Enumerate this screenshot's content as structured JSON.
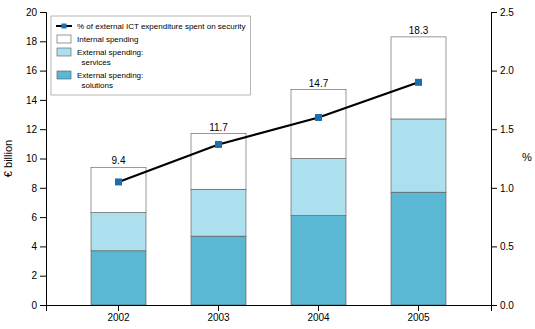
{
  "chart_data": {
    "type": "bar",
    "stacked": true,
    "grid": false,
    "legend": "upper-left",
    "categories": [
      "2002",
      "2003",
      "2004",
      "2005"
    ],
    "ylabel": "€ billion",
    "y2label": "%",
    "ylim": [
      0,
      20
    ],
    "yticks": [
      0,
      2,
      4,
      6,
      8,
      10,
      12,
      14,
      16,
      18,
      20
    ],
    "y2lim": [
      0.0,
      2.5
    ],
    "y2ticks": [
      {
        "value": 0.0,
        "label": "0.0"
      },
      0.5,
      {
        "value": 1.0,
        "label": "1.0"
      },
      1.5,
      {
        "value": 2.0,
        "label": "2.0"
      },
      2.5
    ],
    "totals": [
      9.4,
      11.7,
      14.7,
      18.3
    ],
    "series": [
      {
        "name": "External spending:\n  solutions",
        "type": "bar",
        "color": "#5BB8D4",
        "values": [
          3.7,
          4.7,
          6.1,
          7.7
        ]
      },
      {
        "name": "External spending:\n  services",
        "type": "bar",
        "color": "#ADE0EF",
        "values": [
          2.6,
          3.2,
          3.9,
          5.0
        ]
      },
      {
        "name": "Internal spending",
        "type": "bar",
        "color": "#FFFFFF",
        "values": [
          3.1,
          3.8,
          4.7,
          5.6
        ]
      },
      {
        "name": "% of external ICT expenditure spent on security",
        "type": "line",
        "axis": "y2",
        "color": "#1A6FAF",
        "marker": "square",
        "values": [
          1.05,
          1.37,
          1.6,
          1.9
        ]
      }
    ]
  }
}
